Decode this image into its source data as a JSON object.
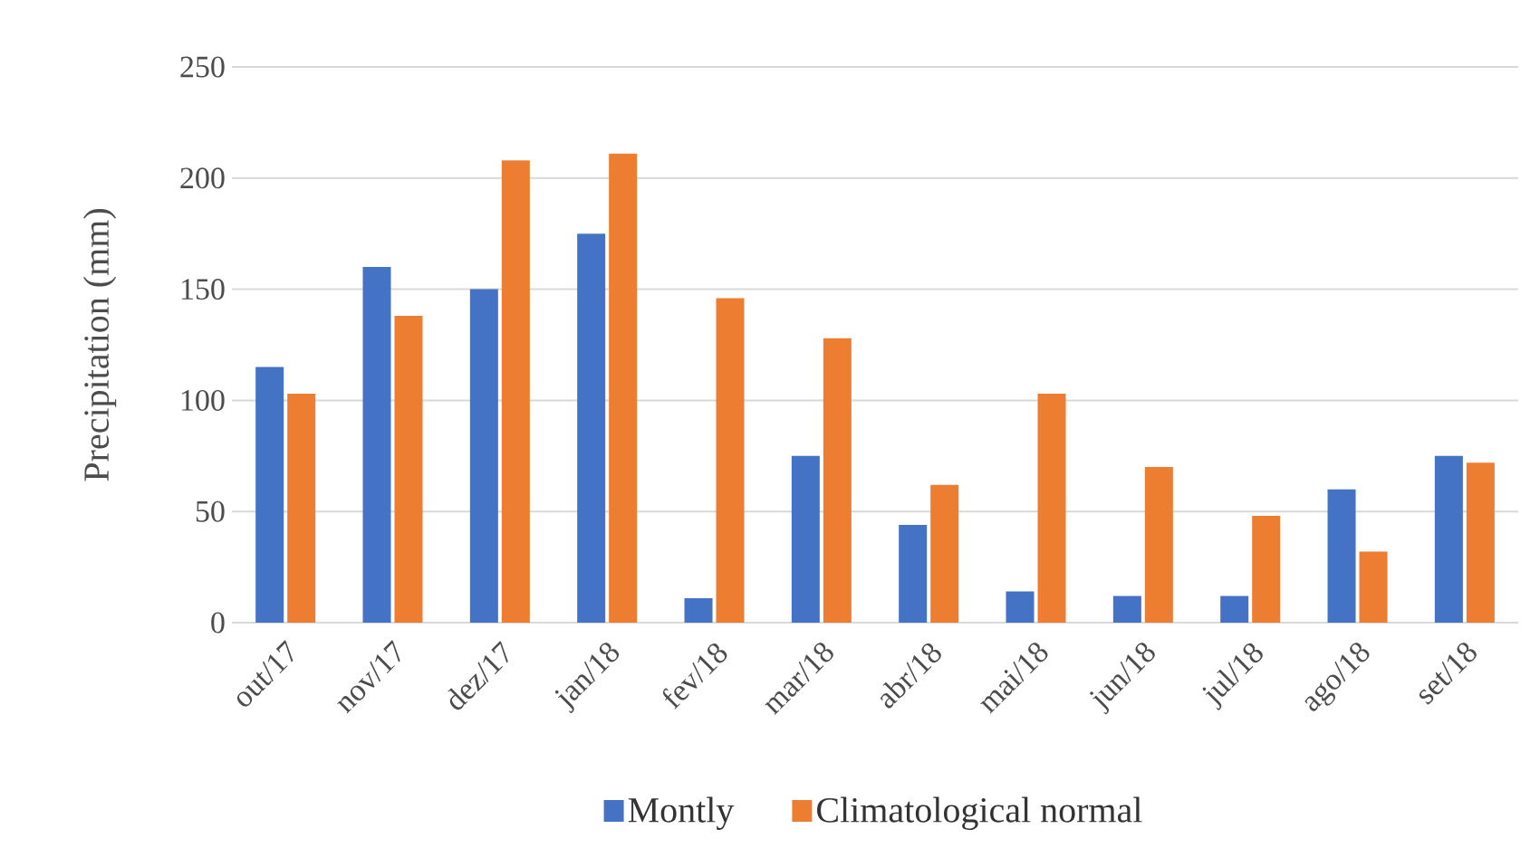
{
  "chart_data": {
    "type": "bar",
    "ylabel": "Precipitation (mm)",
    "categories": [
      "out/17",
      "nov/17",
      "dez/17",
      "jan/18",
      "fev/18",
      "mar/18",
      "abr/18",
      "mai/18",
      "jun/18",
      "jul/18",
      "ago/18",
      "set/18"
    ],
    "series": [
      {
        "name": "Montly",
        "color": "#4472c4",
        "values": [
          115,
          160,
          150,
          175,
          11,
          75,
          44,
          14,
          12,
          12,
          60,
          75
        ]
      },
      {
        "name": "Climatological normal",
        "color": "#ed7d31",
        "values": [
          103,
          138,
          208,
          211,
          146,
          128,
          62,
          103,
          70,
          48,
          32,
          72
        ]
      }
    ],
    "ylim": [
      0,
      250
    ],
    "yticks": [
      0,
      50,
      100,
      150,
      200,
      250
    ],
    "grid": "y",
    "legend": "bottom"
  }
}
